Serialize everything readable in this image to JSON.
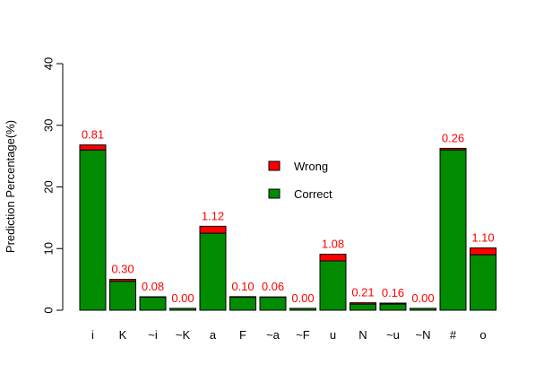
{
  "chart_data": {
    "type": "bar",
    "stacked": true,
    "ylabel": "Prediction Percentage(%)",
    "ylim": [
      0,
      40
    ],
    "yticks": [
      0,
      10,
      20,
      30,
      40
    ],
    "grid": false,
    "legend_position": "center",
    "categories": [
      "i",
      "K",
      "~i",
      "~K",
      "a",
      "F",
      "~a",
      "~F",
      "u",
      "N",
      "~u",
      "~N",
      "#",
      "o"
    ],
    "series": [
      {
        "name": "Correct",
        "color": "#008b00",
        "values": [
          26.0,
          4.7,
          2.1,
          0.3,
          12.5,
          2.1,
          2.1,
          0.3,
          8.0,
          1.0,
          1.0,
          0.3,
          26.0,
          9.0
        ]
      },
      {
        "name": "Wrong",
        "color": "#ff0000",
        "values": [
          0.81,
          0.3,
          0.08,
          0.0,
          1.12,
          0.1,
          0.06,
          0.0,
          1.08,
          0.21,
          0.16,
          0.0,
          0.26,
          1.1
        ]
      }
    ],
    "wrong_labels": [
      "0.81",
      "0.30",
      "0.08",
      "0.00",
      "1.12",
      "0.10",
      "0.06",
      "0.00",
      "1.08",
      "0.21",
      "0.16",
      "0.00",
      "0.26",
      "1.10"
    ],
    "legend": [
      "Wrong",
      "Correct"
    ]
  }
}
